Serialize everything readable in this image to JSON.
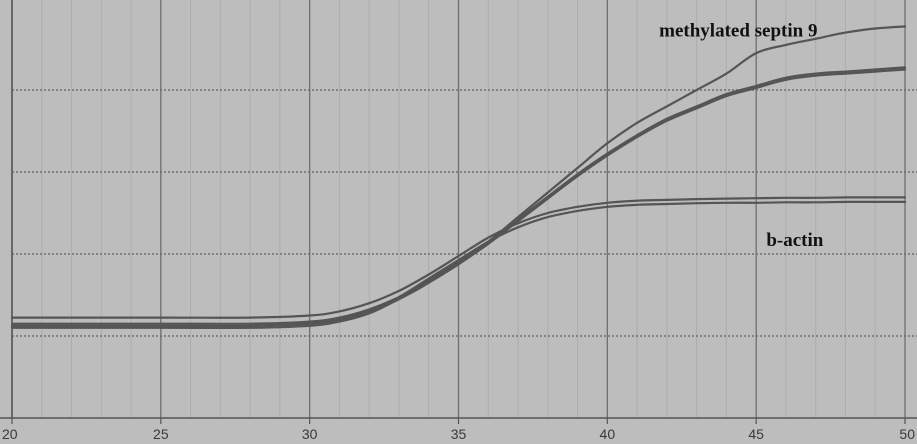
{
  "chart_data": {
    "type": "line",
    "title": "",
    "xlabel": "",
    "ylabel": "",
    "xlim": [
      20,
      50
    ],
    "ylim": [
      0,
      1
    ],
    "x_ticks": [
      20,
      25,
      30,
      35,
      40,
      45,
      50
    ],
    "x_tick_labels": [
      "20",
      "25",
      "30",
      "35",
      "40",
      "45",
      "50"
    ],
    "y_tick_labels": [],
    "grid": true,
    "legend": "none",
    "annotations": [
      {
        "text": "methylated septin 9",
        "x": 44.4,
        "y": 0.93
      },
      {
        "text": "b-actin",
        "x": 46.3,
        "y": 0.42
      }
    ],
    "series": [
      {
        "x": [
          20,
          25,
          28,
          30,
          31,
          32,
          33,
          34,
          35,
          36,
          37,
          38,
          39,
          40,
          41,
          42,
          43,
          44,
          45,
          46,
          47,
          48,
          49,
          50
        ],
        "values": [
          0.225,
          0.225,
          0.225,
          0.23,
          0.24,
          0.26,
          0.29,
          0.33,
          0.38,
          0.43,
          0.49,
          0.55,
          0.61,
          0.67,
          0.72,
          0.76,
          0.8,
          0.84,
          0.89,
          0.91,
          0.925,
          0.94,
          0.95,
          0.955
        ]
      },
      {
        "x": [
          20,
          25,
          28,
          30,
          31,
          32,
          33,
          34,
          35,
          36,
          37,
          38,
          39,
          40,
          41,
          42,
          43,
          44,
          45,
          46,
          47,
          48,
          49,
          50
        ],
        "values": [
          0.23,
          0.23,
          0.23,
          0.235,
          0.245,
          0.265,
          0.295,
          0.335,
          0.38,
          0.43,
          0.485,
          0.54,
          0.595,
          0.645,
          0.69,
          0.73,
          0.76,
          0.79,
          0.81,
          0.83,
          0.84,
          0.845,
          0.85,
          0.855
        ]
      },
      {
        "x": [
          20,
          25,
          28,
          30,
          31,
          32,
          33,
          34,
          35,
          36,
          37,
          38,
          39,
          40,
          41,
          42,
          43,
          44,
          45,
          46,
          47,
          48,
          49,
          50
        ],
        "values": [
          0.22,
          0.22,
          0.22,
          0.225,
          0.235,
          0.255,
          0.29,
          0.33,
          0.375,
          0.425,
          0.48,
          0.535,
          0.59,
          0.64,
          0.685,
          0.725,
          0.755,
          0.785,
          0.805,
          0.825,
          0.835,
          0.84,
          0.845,
          0.85
        ]
      },
      {
        "x": [
          20,
          25,
          28,
          30,
          31,
          32,
          33,
          34,
          35,
          36,
          37,
          38,
          39,
          40,
          41,
          42,
          43,
          44,
          45,
          46,
          47,
          48,
          49,
          50
        ],
        "values": [
          0.245,
          0.245,
          0.245,
          0.25,
          0.26,
          0.28,
          0.31,
          0.35,
          0.395,
          0.44,
          0.475,
          0.5,
          0.515,
          0.525,
          0.53,
          0.532,
          0.534,
          0.535,
          0.536,
          0.537,
          0.537,
          0.538,
          0.538,
          0.538
        ]
      },
      {
        "x": [
          20,
          25,
          28,
          30,
          31,
          32,
          33,
          34,
          35,
          36,
          37,
          38,
          39,
          40,
          41,
          42,
          43,
          44,
          45,
          46,
          47,
          48,
          49,
          50
        ],
        "values": [
          0.225,
          0.225,
          0.225,
          0.23,
          0.24,
          0.26,
          0.295,
          0.34,
          0.385,
          0.43,
          0.465,
          0.49,
          0.505,
          0.515,
          0.52,
          0.522,
          0.524,
          0.525,
          0.525,
          0.526,
          0.526,
          0.527,
          0.527,
          0.527
        ]
      }
    ],
    "colors": {
      "background": "#bdbdbd",
      "grid_major": "#6f6f6f",
      "grid_minor": "#adadad",
      "line": "#555555",
      "axis": "#555555"
    }
  }
}
